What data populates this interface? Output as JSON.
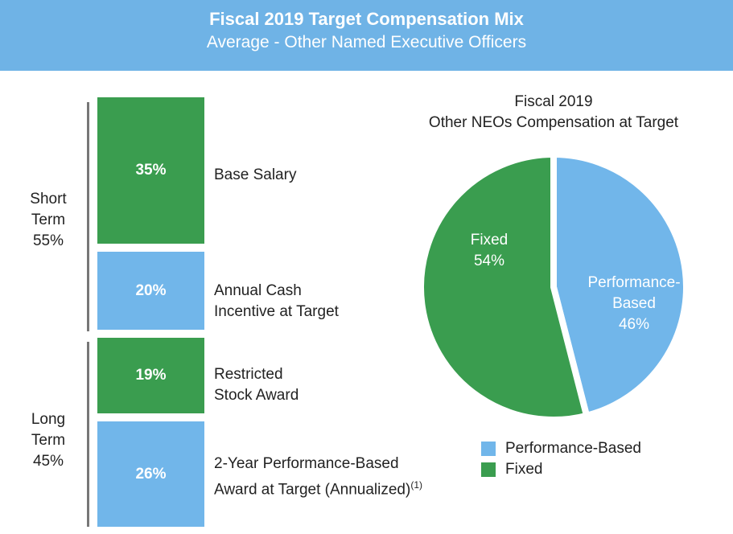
{
  "header": {
    "title": "Fiscal 2019 Target Compensation Mix",
    "subtitle": "Average - Other Named Executive Officers"
  },
  "colors": {
    "green": "#3a9d4f",
    "blue": "#71b6ea"
  },
  "chart_data": [
    {
      "type": "bar",
      "stacked": true,
      "groups": [
        {
          "label_lines": [
            "Short",
            "Term",
            "55%"
          ]
        },
        {
          "label_lines": [
            "Long",
            "Term",
            "45%"
          ]
        }
      ],
      "items": [
        {
          "value_label": "35%",
          "value": 35,
          "label_lines": [
            "Base Salary"
          ],
          "color": "#3a9d4f"
        },
        {
          "value_label": "20%",
          "value": 20,
          "label_lines": [
            "Annual Cash",
            "Incentive at Target"
          ],
          "color": "#71b6ea"
        },
        {
          "value_label": "19%",
          "value": 19,
          "label_lines": [
            "Restricted",
            "Stock Award"
          ],
          "color": "#3a9d4f"
        },
        {
          "value_label": "26%",
          "value": 26,
          "label_lines": [
            "2-Year Performance-Based",
            "Award at Target (Annualized)"
          ],
          "footnote": "(1)",
          "color": "#71b6ea"
        }
      ]
    },
    {
      "type": "pie",
      "title_lines": [
        "Fiscal 2019",
        "Other NEOs Compensation at Target"
      ],
      "slices": [
        {
          "name": "Performance-Based",
          "label_lines": [
            "Performance-",
            "Based",
            "46%"
          ],
          "value": 46,
          "color": "#71b6ea"
        },
        {
          "name": "Fixed",
          "label_lines": [
            "Fixed",
            "54%"
          ],
          "value": 54,
          "color": "#3a9d4f"
        }
      ],
      "legend": {
        "placement": "bottom",
        "entries": [
          "Performance-Based",
          "Fixed"
        ]
      }
    }
  ]
}
